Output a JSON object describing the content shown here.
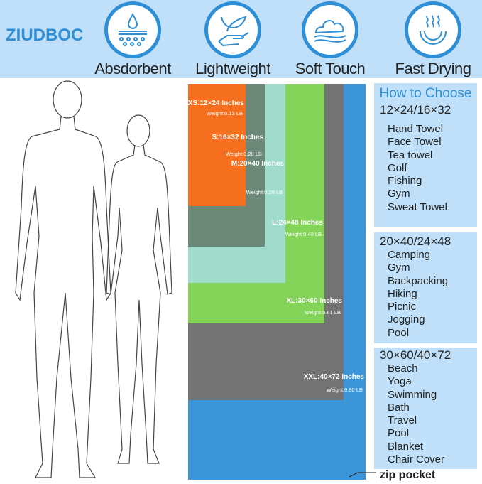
{
  "header": {
    "brand": "ZIUDBOC",
    "features": [
      {
        "label": "Absdorbent",
        "icon": "water-drop-icon"
      },
      {
        "label": "Lightweight",
        "icon": "feather-hand-icon"
      },
      {
        "label": "Soft Touch",
        "icon": "cloud-icon"
      },
      {
        "label": "Fast Drying",
        "icon": "steam-icon"
      }
    ]
  },
  "sizes": [
    {
      "label": "XS:12×24 Inches",
      "weight": "Weight:0.13 LB",
      "color": "#f66f1f"
    },
    {
      "label": "S:16×32 Inches",
      "weight": "Weight:0.20 LB",
      "color": "#6b8878"
    },
    {
      "label": "M:20×40 Inches",
      "weight": "Weight:0.28 LB",
      "color": "#a0dccb"
    },
    {
      "label": "L:24×48 Inches",
      "weight": "Weight:0.40 LB",
      "color": "#84d45a"
    },
    {
      "label": "XL:30×60 Inches",
      "weight": "Weight:0.61 LB",
      "color": "#737373"
    },
    {
      "label": "XXL:40×72 Inches",
      "weight": "Weight:0.90 LB",
      "color": "#3b95d8"
    }
  ],
  "guide": {
    "title": "How to Choose",
    "groups": [
      {
        "sizes": "12×24/16×32",
        "uses": [
          "Hand Towel",
          "Face Towel",
          "Tea towel",
          "Golf",
          "Fishing",
          "Gym",
          "Sweat Towel"
        ]
      },
      {
        "sizes": "20×40/24×48",
        "uses": [
          "Camping",
          "Gym",
          "Backpacking",
          "Hiking",
          "Picnic",
          "Jogging",
          "Pool"
        ]
      },
      {
        "sizes": "30×60/40×72",
        "uses": [
          "Beach",
          "Yoga",
          "Swimming",
          "Bath",
          "Travel",
          "Pool",
          "Blanket",
          "Chair Cover"
        ]
      }
    ]
  },
  "zip_label": "zip pocket"
}
